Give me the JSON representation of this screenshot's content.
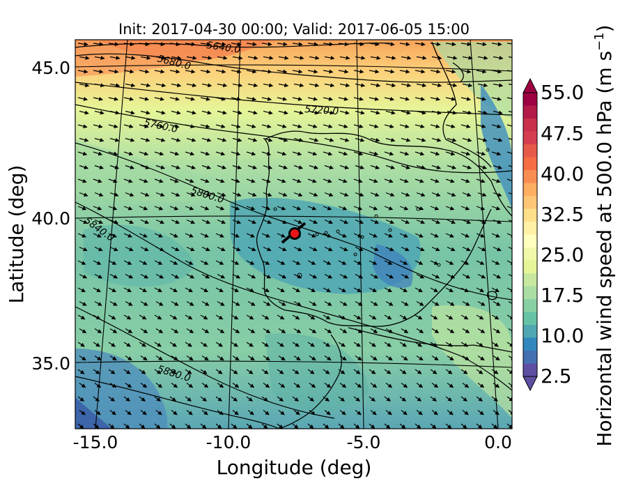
{
  "title": "Init: 2017-04-30 00:00; Valid: 2017-06-05 15:00",
  "x_axis": {
    "label": "Longitude (deg)",
    "ticks": [
      {
        "value": -15.0,
        "label": "-15.0"
      },
      {
        "value": -10.0,
        "label": "-10.0"
      },
      {
        "value": -5.0,
        "label": "-5.0"
      },
      {
        "value": 0.0,
        "label": "0.0"
      }
    ]
  },
  "y_axis": {
    "label": "Latitude (deg)",
    "ticks": [
      {
        "value": 45.0,
        "label": "45.0"
      },
      {
        "value": 40.0,
        "label": "40.0"
      },
      {
        "value": 35.0,
        "label": "35.0"
      }
    ]
  },
  "colorbar": {
    "label": "Horizontal wind speed at 500.0 hPa (m s",
    "label_superscript": "−1",
    "label_suffix": ")",
    "ticks": [
      "55.0",
      "47.5",
      "40.0",
      "32.5",
      "25.0",
      "17.5",
      "10.0",
      "2.5"
    ],
    "colors": [
      "#9e0142",
      "#b31a47",
      "#c9304c",
      "#d53e4f",
      "#e55a49",
      "#f46d43",
      "#f88d52",
      "#fdae61",
      "#fdc676",
      "#fee08b",
      "#fff0a6",
      "#ffffbf",
      "#f1f9a9",
      "#e6f598",
      "#c7e89e",
      "#abdda4",
      "#88d0a4",
      "#66c2a5",
      "#4fa7b1",
      "#3288bd",
      "#4470b1",
      "#5e4fa2"
    ]
  },
  "contour_labels": [
    "5640.0",
    "5680.0",
    "5720.0",
    "5760.0",
    "5800.0",
    "5840.0",
    "5880.0"
  ],
  "marker": {
    "name": "location-marker",
    "color": "#e8161a"
  },
  "chart_data": {
    "type": "map",
    "projection": "lambert-conformal",
    "variable": "Horizontal wind speed at 500.0 hPa",
    "units": "m s-1",
    "lon_range": [
      -16.0,
      0.0
    ],
    "lat_range": [
      33.0,
      46.0
    ],
    "colorbar_range": [
      2.5,
      55.0
    ],
    "colorbar_ticks": [
      2.5,
      10.0,
      17.5,
      25.0,
      32.5,
      40.0,
      47.5,
      55.0
    ],
    "contours": [
      {
        "label": "5640.0",
        "lon": -11.0,
        "lat": 45.9
      },
      {
        "label": "5680.0",
        "lon": -12.6,
        "lat": 45.3
      },
      {
        "label": "5720.0",
        "lon": -6.9,
        "lat": 43.9
      },
      {
        "label": "5760.0",
        "lon": -12.6,
        "lat": 43.3
      },
      {
        "label": "5800.0",
        "lon": -11.0,
        "lat": 41.0
      },
      {
        "label": "5840.0",
        "lon": -15.0,
        "lat": 39.6
      },
      {
        "label": "5880.0",
        "lon": -12.5,
        "lat": 34.6
      }
    ],
    "marker_position": {
      "lon": -7.6,
      "lat": 39.3
    }
  }
}
